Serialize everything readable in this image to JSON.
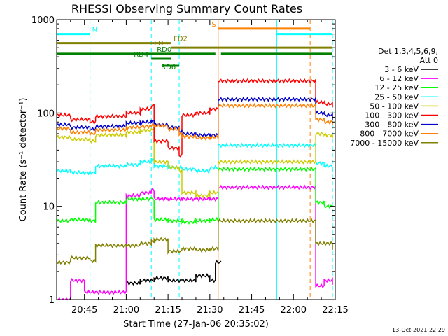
{
  "chart_data": {
    "type": "line",
    "title": "RHESSI Observing Summary Count Rates",
    "xlabel": "Start Time (27-Jan-06 20:35:02)",
    "ylabel": "Count Rate (s⁻¹ detector⁻¹)",
    "y_scale": "log",
    "ylim": [
      1,
      1000
    ],
    "xlim": [
      "20:35:02",
      "22:15"
    ],
    "yticks": [
      1,
      10,
      100,
      1000
    ],
    "xticks": [
      "20:45",
      "21:00",
      "21:15",
      "21:30",
      "21:45",
      "22:00",
      "22:15"
    ],
    "legend_header": [
      "Det 1,3,4,5,6,9,",
      "Att 0"
    ],
    "legend_position": "right",
    "footer_date": "13-Oct-2021 22:29",
    "series": [
      {
        "name": "3 - 6 keV",
        "color": "#000000",
        "x": [
          "20:35",
          "20:45",
          "21:00",
          "21:05",
          "21:10",
          "21:15",
          "21:20",
          "21:25",
          "21:30",
          "21:32",
          "21:34",
          "21:55",
          "22:08",
          "22:11",
          "22:14"
        ],
        "values": [
          null,
          null,
          1.5,
          1.6,
          1.7,
          1.6,
          1.6,
          1.8,
          1.6,
          2.5,
          null,
          null,
          null,
          null,
          null
        ]
      },
      {
        "name": "6 - 12 keV",
        "color": "#ff00ff",
        "x": [
          "20:35",
          "20:40",
          "20:45",
          "21:00",
          "21:05",
          "21:09",
          "21:10",
          "21:15",
          "21:20",
          "21:25",
          "21:30",
          "21:33",
          "22:08",
          "22:11",
          "22:14"
        ],
        "values": [
          1.0,
          1.6,
          1.2,
          13,
          14,
          15,
          12,
          12,
          12,
          12,
          12,
          16,
          1.4,
          1.6,
          1.5
        ]
      },
      {
        "name": "12 - 25 keV",
        "color": "#00ff00",
        "x": [
          "20:35",
          "20:40",
          "20:47",
          "20:49",
          "21:00",
          "21:09",
          "21:10",
          "21:15",
          "21:20",
          "21:25",
          "21:30",
          "21:33",
          "22:08",
          "22:11",
          "22:14"
        ],
        "values": [
          7.0,
          7.2,
          7.0,
          11,
          12,
          12,
          7.2,
          7.0,
          6.8,
          7.0,
          7.2,
          25,
          11,
          10,
          10
        ]
      },
      {
        "name": "25 - 50 keV",
        "color": "#00ffff",
        "x": [
          "20:35",
          "20:40",
          "20:47",
          "20:49",
          "21:00",
          "21:05",
          "21:09",
          "21:10",
          "21:15",
          "21:20",
          "21:25",
          "21:30",
          "21:33",
          "22:08",
          "22:11",
          "22:14"
        ],
        "values": [
          24,
          23,
          23,
          27,
          28,
          30,
          32,
          27,
          26,
          25,
          24,
          26,
          45,
          29,
          27,
          24
        ]
      },
      {
        "name": "50 - 100 keV",
        "color": "#cccc00",
        "x": [
          "20:35",
          "20:40",
          "20:47",
          "20:49",
          "21:00",
          "21:05",
          "21:09",
          "21:10",
          "21:15",
          "21:19",
          "21:20",
          "21:25",
          "21:30",
          "21:33",
          "22:08",
          "22:11",
          "22:14"
        ],
        "values": [
          55,
          52,
          50,
          58,
          62,
          65,
          68,
          30,
          26,
          24,
          14,
          13,
          14,
          30,
          60,
          58,
          55
        ]
      },
      {
        "name": "100 - 300 keV",
        "color": "#ff0000",
        "x": [
          "20:35",
          "20:40",
          "20:47",
          "20:49",
          "21:00",
          "21:05",
          "21:09",
          "21:10",
          "21:15",
          "21:19",
          "21:20",
          "21:25",
          "21:30",
          "21:33",
          "22:08",
          "22:11",
          "22:14"
        ],
        "values": [
          95,
          85,
          80,
          92,
          100,
          110,
          120,
          50,
          42,
          35,
          95,
          100,
          110,
          220,
          130,
          125,
          120
        ]
      },
      {
        "name": "300 - 800 keV",
        "color": "#0000cc",
        "x": [
          "20:35",
          "20:40",
          "20:47",
          "20:49",
          "21:00",
          "21:05",
          "21:09",
          "21:10",
          "21:15",
          "21:19",
          "21:20",
          "21:25",
          "21:30",
          "21:33",
          "22:08",
          "22:11",
          "22:14"
        ],
        "values": [
          75,
          70,
          67,
          72,
          78,
          80,
          82,
          75,
          70,
          64,
          60,
          58,
          58,
          140,
          100,
          95,
          88
        ]
      },
      {
        "name": "800 - 7000 keV",
        "color": "#ff8000",
        "x": [
          "20:35",
          "20:40",
          "20:47",
          "20:49",
          "21:00",
          "21:05",
          "21:09",
          "21:10",
          "21:15",
          "21:19",
          "21:20",
          "21:25",
          "21:30",
          "21:33",
          "22:08",
          "22:11",
          "22:14"
        ],
        "values": [
          68,
          62,
          60,
          66,
          70,
          72,
          74,
          73,
          67,
          60,
          56,
          54,
          55,
          120,
          85,
          80,
          75
        ]
      },
      {
        "name": "7000 - 15000 keV",
        "color": "#808000",
        "x": [
          "20:35",
          "20:40",
          "20:47",
          "20:49",
          "21:00",
          "21:05",
          "21:09",
          "21:10",
          "21:15",
          "21:20",
          "21:25",
          "21:30",
          "21:33",
          "22:08",
          "22:11",
          "22:14"
        ],
        "values": [
          2.5,
          2.8,
          2.6,
          3.8,
          3.8,
          4.0,
          4.2,
          4.4,
          3.3,
          3.5,
          3.4,
          3.5,
          7,
          4,
          4,
          3.5
        ]
      }
    ],
    "flag_bars": [
      {
        "label": "N",
        "color": "#00ffff",
        "level": 700,
        "segments": [
          [
            "20:35",
            "20:47"
          ],
          [
            "21:54",
            "22:14"
          ]
        ]
      },
      {
        "label": "S",
        "color": "#ff8000",
        "level": 800,
        "segments": [
          [
            "21:33",
            "22:06"
          ]
        ]
      },
      {
        "label": "FD2",
        "color": "#808000",
        "level": 560,
        "segments": [
          [
            "20:35",
            "21:16"
          ]
        ]
      },
      {
        "label": "FD3",
        "color": "#808000",
        "level": 500,
        "segments": [
          [
            "21:16",
            "22:14"
          ]
        ]
      },
      {
        "label": "RD0",
        "color": "#008000",
        "level": 430,
        "segments": [
          [
            "20:35",
            "21:32"
          ],
          [
            "21:34",
            "22:14"
          ]
        ]
      },
      {
        "label": "RD4",
        "color": "#008000",
        "level": 380,
        "segments": [
          [
            "21:09",
            "21:16"
          ]
        ]
      },
      {
        "label": "RD6",
        "color": "#008000",
        "level": 320,
        "segments": [
          [
            "21:13",
            "21:19"
          ]
        ]
      }
    ],
    "vertical_markers": [
      {
        "x": "20:35",
        "color": "#00ffff",
        "style": "solid"
      },
      {
        "x": "20:47",
        "color": "#00ffff",
        "style": "dashed"
      },
      {
        "x": "21:09",
        "color": "#00ffff",
        "style": "dashed"
      },
      {
        "x": "21:19",
        "color": "#00ffff",
        "style": "dashed"
      },
      {
        "x": "21:33",
        "color": "#ff8000",
        "style": "solid"
      },
      {
        "x": "21:54",
        "color": "#00ffff",
        "style": "solid"
      },
      {
        "x": "22:06",
        "color": "#ff8000",
        "style": "dashed"
      },
      {
        "x": "22:14",
        "color": "#00ffff",
        "style": "dashed"
      }
    ]
  }
}
